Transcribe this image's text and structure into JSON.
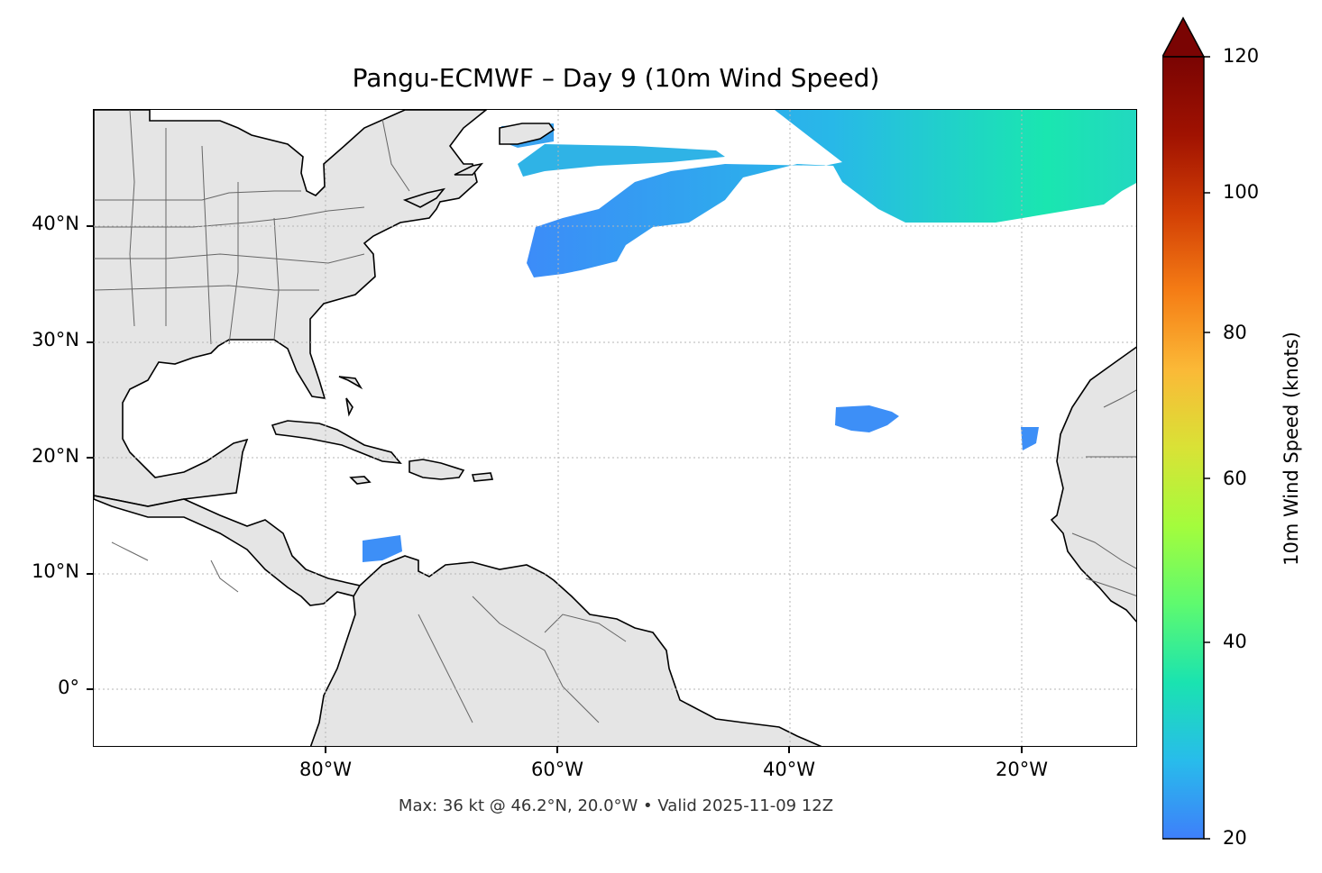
{
  "title": "Pangu-ECMWF – Day 9 (10m Wind Speed)",
  "footer": "Max: 36 kt @ 46.2°N, 20.0°W • Valid 2025-11-09 12Z",
  "map": {
    "lon_range": [
      -100,
      -10
    ],
    "lat_range": [
      -5,
      50
    ],
    "lat_labels": [
      "40°N",
      "30°N",
      "20°N",
      "10°N",
      "0°"
    ],
    "lon_labels": [
      "80°W",
      "60°W",
      "40°W",
      "20°W"
    ],
    "gridlines": true,
    "land_color": "#e5e5e5",
    "coast_color": "#000000",
    "border_color": "#666666"
  },
  "colorbar": {
    "label": "10m Wind Speed (knots)",
    "min": 20,
    "max": 120,
    "ticks": [
      "20",
      "40",
      "60",
      "80",
      "100",
      "120"
    ],
    "extend": "max",
    "colormap": "turbo",
    "stops": [
      "#3e7ffa",
      "#28bceb",
      "#1ae3b0",
      "#5efa6f",
      "#a4fc3c",
      "#d9e236",
      "#fbb937",
      "#f57d15",
      "#d23f05",
      "#a01201",
      "#7a0403"
    ]
  }
}
